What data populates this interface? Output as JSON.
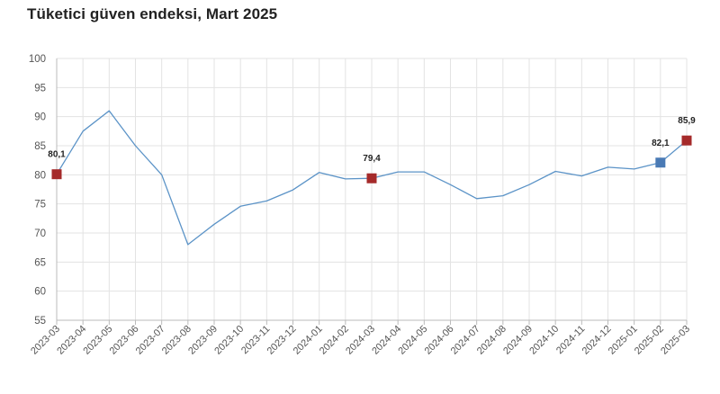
{
  "chart_data": {
    "type": "line",
    "title": "Tüketici güven endeksi, Mart 2025",
    "xlabel": "",
    "ylabel": "",
    "ylim": [
      55,
      100
    ],
    "yticks": [
      55,
      60,
      65,
      70,
      75,
      80,
      85,
      90,
      95,
      100
    ],
    "grid": true,
    "legend": "none",
    "categories": [
      "2023-03",
      "2023-04",
      "2023-05",
      "2023-06",
      "2023-07",
      "2023-08",
      "2023-09",
      "2023-10",
      "2023-11",
      "2023-12",
      "2024-01",
      "2024-02",
      "2024-03",
      "2024-04",
      "2024-05",
      "2024-06",
      "2024-07",
      "2024-08",
      "2024-09",
      "2024-10",
      "2024-11",
      "2024-12",
      "2025-01",
      "2025-02",
      "2025-03"
    ],
    "series": [
      {
        "values": [
          80.1,
          87.5,
          91.0,
          85.0,
          80.0,
          68.0,
          71.5,
          74.6,
          75.5,
          77.4,
          80.4,
          79.3,
          79.4,
          80.5,
          80.5,
          78.3,
          75.9,
          76.4,
          78.3,
          80.6,
          79.8,
          81.3,
          81.0,
          82.1,
          85.9
        ],
        "color": "#5b93c7"
      }
    ],
    "markers": [
      {
        "category": "2023-03",
        "value": 80.1,
        "label": "80,1",
        "color": "#a52a2a"
      },
      {
        "category": "2024-03",
        "value": 79.4,
        "label": "79,4",
        "color": "#a52a2a"
      },
      {
        "category": "2025-02",
        "value": 82.1,
        "label": "82,1",
        "color": "#4a7ab5"
      },
      {
        "category": "2025-03",
        "value": 85.9,
        "label": "85,9",
        "color": "#a52a2a"
      }
    ],
    "colors": {
      "grid": "#e3e3e3",
      "axis": "#bbbbbb"
    }
  }
}
